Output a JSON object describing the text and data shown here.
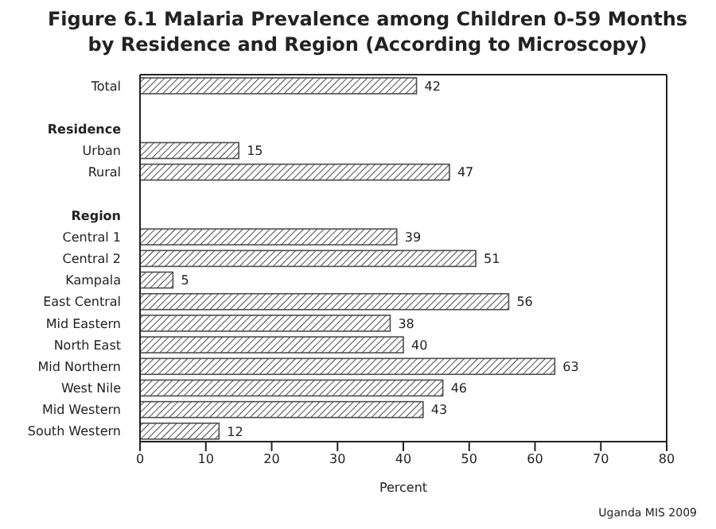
{
  "chart_data": {
    "type": "bar",
    "orientation": "horizontal",
    "title": "Figure 6.1  Malaria Prevalence among Children 0-59 Months by Residence and Region (According to Microscopy)",
    "categories": [
      "Total",
      null,
      "Residence",
      "Urban",
      "Rural",
      null,
      "Region",
      "Central 1",
      "Central 2",
      "Kampala",
      "East Central",
      "Mid Eastern",
      "North East",
      "Mid Northern",
      "West Nile",
      "Mid Western",
      "South Western"
    ],
    "values": [
      42,
      null,
      null,
      15,
      47,
      null,
      null,
      39,
      51,
      5,
      56,
      38,
      40,
      63,
      46,
      43,
      12
    ],
    "color": "#4d4d4d",
    "xlabel": "Percent",
    "xlim": [
      0,
      80
    ],
    "xticks": [
      0,
      10,
      20,
      30,
      40,
      50,
      60,
      70,
      80
    ],
    "grid": false,
    "data_labels": true,
    "annotations": [
      "Uganda MIS 2009"
    ]
  }
}
